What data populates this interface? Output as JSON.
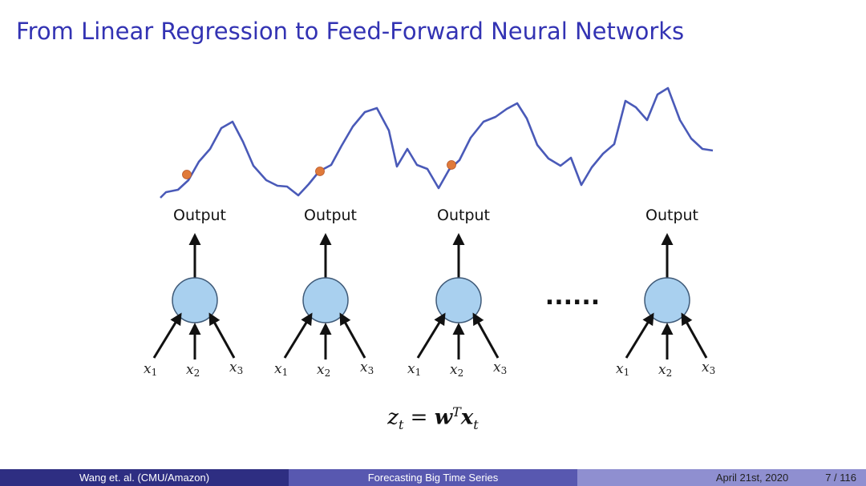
{
  "slide": {
    "title": "From Linear Regression to Feed-Forward Neural Networks"
  },
  "diagram": {
    "output_label": "Output",
    "ellipsis": "......",
    "inputs": [
      {
        "var": "x",
        "sub": "1"
      },
      {
        "var": "x",
        "sub": "2"
      },
      {
        "var": "x",
        "sub": "3"
      }
    ],
    "colors": {
      "series_line": "#4a5ab8",
      "marker": "#e07a3a",
      "node_fill": "#a9d0ef",
      "node_stroke": "#3f5a78"
    }
  },
  "formula": {
    "lhs_var": "z",
    "lhs_sub": "t",
    "equals": "=",
    "w": "w",
    "w_sup": "T",
    "x": "x",
    "x_sub": "t"
  },
  "footer": {
    "authors": "Wang et. al. (CMU/Amazon)",
    "talk_title": "Forecasting Big Time Series",
    "date": "April 21st, 2020",
    "page": "7 / 116"
  }
}
